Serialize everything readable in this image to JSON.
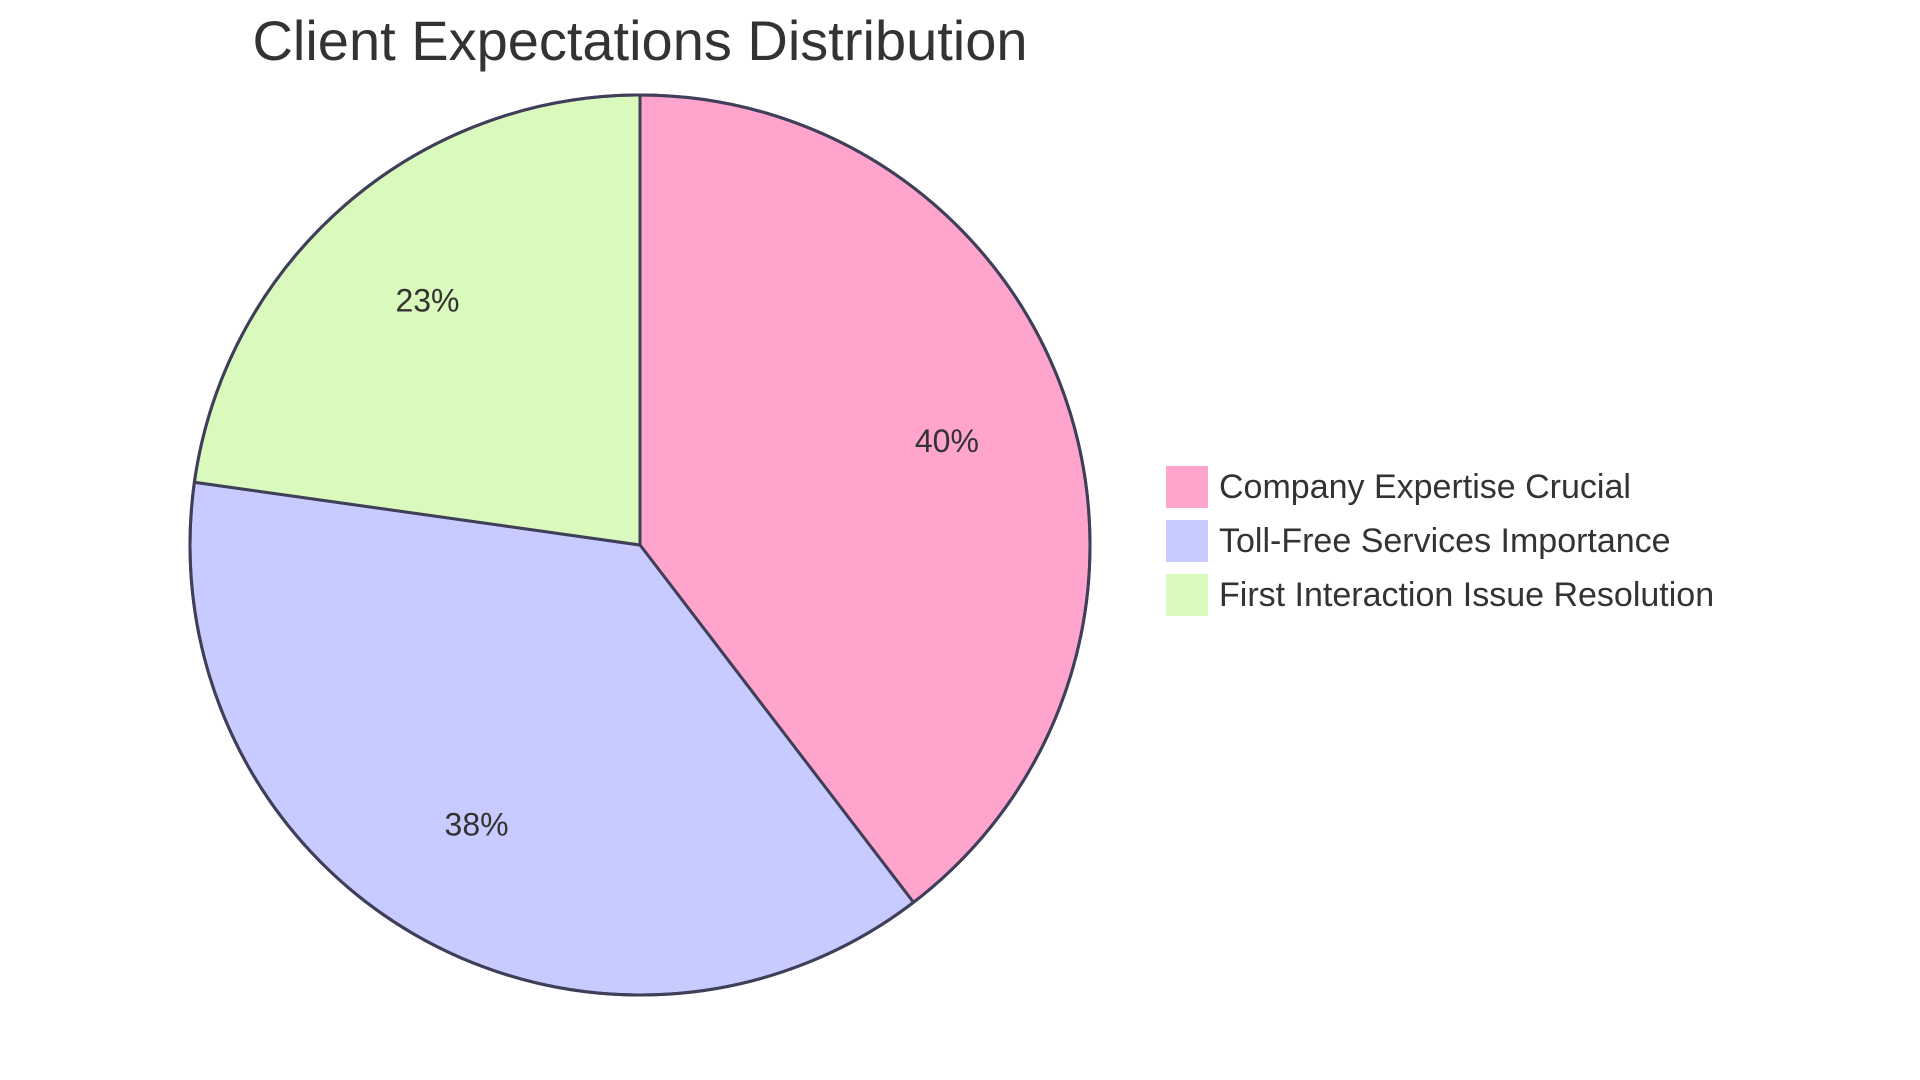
{
  "chart_data": {
    "type": "pie",
    "title": "Client Expectations Distribution",
    "categories": [
      "Company Expertise Crucial",
      "Toll-Free Services Importance",
      "First Interaction Issue Resolution"
    ],
    "values": [
      40,
      38,
      23
    ],
    "value_labels": [
      "40%",
      "38%",
      "23%"
    ],
    "colors": [
      "#FFA5CD",
      "#C8CBFF",
      "#DAF9BC"
    ],
    "legend_placement": "right",
    "border_color": "#3F3F5A"
  }
}
